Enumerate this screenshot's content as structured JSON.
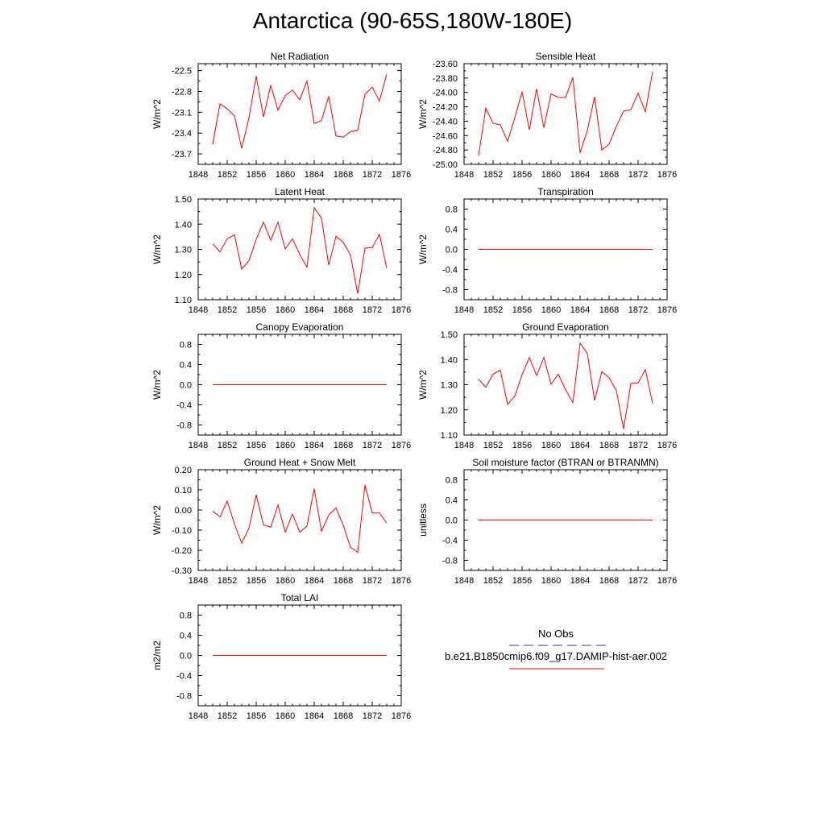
{
  "title": "Antarctica (90-65S,180W-180E)",
  "legend": {
    "obs_label": "No Obs",
    "obs_color": "#3a3aa8",
    "run_label": "b.e21.B1850cmip6.f09_g17.DAMIP-hist-aer.002",
    "run_color": "#ff0000"
  },
  "chart_data": [
    {
      "type": "line",
      "title": "Net Radiation",
      "ylabel": "W/m^2",
      "xlim": [
        1848,
        1876
      ],
      "ylim": [
        -23.85,
        -22.4
      ],
      "xticks": [
        "1848",
        "1852",
        "1856",
        "1860",
        "1864",
        "1868",
        "1872",
        "1876"
      ],
      "yticks": [
        -22.5,
        -22.8,
        -23.1,
        -23.4,
        -23.7
      ],
      "ytick_labels": [
        "-22.5",
        "-22.8",
        "-23.1",
        "-23.4",
        "-23.7"
      ],
      "x": [
        1850,
        1851,
        1852,
        1853,
        1854,
        1855,
        1856,
        1857,
        1858,
        1859,
        1860,
        1861,
        1862,
        1863,
        1864,
        1865,
        1866,
        1867,
        1868,
        1869,
        1870,
        1871,
        1872,
        1873,
        1874
      ],
      "series": [
        {
          "color": "#ff0000",
          "values": [
            -23.56,
            -22.98,
            -23.05,
            -23.15,
            -23.62,
            -23.18,
            -22.58,
            -23.17,
            -22.71,
            -23.07,
            -22.86,
            -22.78,
            -22.92,
            -22.65,
            -23.26,
            -23.22,
            -22.87,
            -23.44,
            -23.46,
            -23.38,
            -23.36,
            -22.84,
            -22.74,
            -22.94,
            -22.55
          ]
        }
      ]
    },
    {
      "type": "line",
      "title": "Sensible Heat",
      "ylabel": "W/m^2",
      "xlim": [
        1848,
        1876
      ],
      "ylim": [
        -25.0,
        -23.6
      ],
      "xticks": [
        "1848",
        "1852",
        "1856",
        "1860",
        "1864",
        "1868",
        "1872",
        "1876"
      ],
      "yticks": [
        -23.6,
        -23.8,
        -24.0,
        -24.2,
        -24.4,
        -24.6,
        -24.8,
        -25.0
      ],
      "ytick_labels": [
        "-23.60",
        "-23.80",
        "-24.00",
        "-24.20",
        "-24.40",
        "-24.60",
        "-24.80",
        "-25.00"
      ],
      "x": [
        1850,
        1851,
        1852,
        1853,
        1854,
        1855,
        1856,
        1857,
        1858,
        1859,
        1860,
        1861,
        1862,
        1863,
        1864,
        1865,
        1866,
        1867,
        1868,
        1869,
        1870,
        1871,
        1872,
        1873,
        1874
      ],
      "series": [
        {
          "color": "#ff0000",
          "values": [
            -24.88,
            -24.22,
            -24.43,
            -24.45,
            -24.68,
            -24.35,
            -23.99,
            -24.52,
            -23.95,
            -24.49,
            -24.02,
            -24.07,
            -24.07,
            -23.79,
            -24.84,
            -24.53,
            -24.06,
            -24.8,
            -24.72,
            -24.47,
            -24.26,
            -24.24,
            -24.01,
            -24.27,
            -23.71
          ]
        }
      ]
    },
    {
      "type": "line",
      "title": "Latent Heat",
      "ylabel": "W/m^2",
      "xlim": [
        1848,
        1876
      ],
      "ylim": [
        1.1,
        1.5
      ],
      "xticks": [
        "1848",
        "1852",
        "1856",
        "1860",
        "1864",
        "1868",
        "1872",
        "1876"
      ],
      "yticks": [
        1.5,
        1.4,
        1.3,
        1.2,
        1.1
      ],
      "ytick_labels": [
        "1.50",
        "1.40",
        "1.30",
        "1.20",
        "1.10"
      ],
      "x": [
        1850,
        1851,
        1852,
        1853,
        1854,
        1855,
        1856,
        1857,
        1858,
        1859,
        1860,
        1861,
        1862,
        1863,
        1864,
        1865,
        1866,
        1867,
        1868,
        1869,
        1870,
        1871,
        1872,
        1873,
        1874
      ],
      "series": [
        {
          "color": "#ff0000",
          "values": [
            1.322,
            1.29,
            1.342,
            1.358,
            1.222,
            1.255,
            1.34,
            1.408,
            1.336,
            1.408,
            1.302,
            1.342,
            1.28,
            1.229,
            1.465,
            1.424,
            1.237,
            1.352,
            1.328,
            1.277,
            1.124,
            1.305,
            1.307,
            1.36,
            1.225
          ]
        }
      ]
    },
    {
      "type": "line",
      "title": "Transpiration",
      "ylabel": "W/m^2",
      "xlim": [
        1848,
        1876
      ],
      "ylim": [
        -1.0,
        1.0
      ],
      "xticks": [
        "1848",
        "1852",
        "1856",
        "1860",
        "1864",
        "1868",
        "1872",
        "1876"
      ],
      "yticks": [
        0.8,
        0.4,
        0.0,
        -0.4,
        -0.8
      ],
      "ytick_labels": [
        "0.8",
        "0.4",
        "0.0",
        "-0.4",
        "-0.8"
      ],
      "x": [
        1850,
        1851,
        1852,
        1853,
        1854,
        1855,
        1856,
        1857,
        1858,
        1859,
        1860,
        1861,
        1862,
        1863,
        1864,
        1865,
        1866,
        1867,
        1868,
        1869,
        1870,
        1871,
        1872,
        1873,
        1874
      ],
      "series": [
        {
          "color": "#ff0000",
          "values": [
            0,
            0,
            0,
            0,
            0,
            0,
            0,
            0,
            0,
            0,
            0,
            0,
            0,
            0,
            0,
            0,
            0,
            0,
            0,
            0,
            0,
            0,
            0,
            0,
            0
          ]
        }
      ]
    },
    {
      "type": "line",
      "title": "Canopy Evaporation",
      "ylabel": "W/m^2",
      "xlim": [
        1848,
        1876
      ],
      "ylim": [
        -1.0,
        1.0
      ],
      "xticks": [
        "1848",
        "1852",
        "1856",
        "1860",
        "1864",
        "1868",
        "1872",
        "1876"
      ],
      "yticks": [
        0.8,
        0.4,
        0.0,
        -0.4,
        -0.8
      ],
      "ytick_labels": [
        "0.8",
        "0.4",
        "0.0",
        "-0.4",
        "-0.8"
      ],
      "x": [
        1850,
        1851,
        1852,
        1853,
        1854,
        1855,
        1856,
        1857,
        1858,
        1859,
        1860,
        1861,
        1862,
        1863,
        1864,
        1865,
        1866,
        1867,
        1868,
        1869,
        1870,
        1871,
        1872,
        1873,
        1874
      ],
      "series": [
        {
          "color": "#ff0000",
          "values": [
            0,
            0,
            0,
            0,
            0,
            0,
            0,
            0,
            0,
            0,
            0,
            0,
            0,
            0,
            0,
            0,
            0,
            0,
            0,
            0,
            0,
            0,
            0,
            0,
            0
          ]
        }
      ]
    },
    {
      "type": "line",
      "title": "Ground Evaporation",
      "ylabel": "W/m^2",
      "xlim": [
        1848,
        1876
      ],
      "ylim": [
        1.1,
        1.5
      ],
      "xticks": [
        "1848",
        "1852",
        "1856",
        "1860",
        "1864",
        "1868",
        "1872",
        "1876"
      ],
      "yticks": [
        1.5,
        1.4,
        1.3,
        1.2,
        1.1
      ],
      "ytick_labels": [
        "1.50",
        "1.40",
        "1.30",
        "1.20",
        "1.10"
      ],
      "x": [
        1850,
        1851,
        1852,
        1853,
        1854,
        1855,
        1856,
        1857,
        1858,
        1859,
        1860,
        1861,
        1862,
        1863,
        1864,
        1865,
        1866,
        1867,
        1868,
        1869,
        1870,
        1871,
        1872,
        1873,
        1874
      ],
      "series": [
        {
          "color": "#ff0000",
          "values": [
            1.322,
            1.29,
            1.342,
            1.358,
            1.222,
            1.255,
            1.34,
            1.408,
            1.336,
            1.408,
            1.302,
            1.342,
            1.28,
            1.229,
            1.465,
            1.424,
            1.237,
            1.352,
            1.328,
            1.277,
            1.124,
            1.305,
            1.307,
            1.36,
            1.225
          ]
        }
      ]
    },
    {
      "type": "line",
      "title": "Ground Heat + Snow Melt",
      "ylabel": "W/m^2",
      "xlim": [
        1848,
        1876
      ],
      "ylim": [
        -0.3,
        0.2
      ],
      "xticks": [
        "1848",
        "1852",
        "1856",
        "1860",
        "1864",
        "1868",
        "1872",
        "1876"
      ],
      "yticks": [
        0.2,
        0.1,
        0.0,
        -0.1,
        -0.2,
        -0.3
      ],
      "ytick_labels": [
        "0.20",
        "0.10",
        "0.00",
        "-0.10",
        "-0.20",
        "-0.30"
      ],
      "x": [
        1850,
        1851,
        1852,
        1853,
        1854,
        1855,
        1856,
        1857,
        1858,
        1859,
        1860,
        1861,
        1862,
        1863,
        1864,
        1865,
        1866,
        1867,
        1868,
        1869,
        1870,
        1871,
        1872,
        1873,
        1874
      ],
      "series": [
        {
          "color": "#ff0000",
          "values": [
            -0.005,
            -0.035,
            0.045,
            -0.07,
            -0.165,
            -0.09,
            0.075,
            -0.075,
            -0.085,
            0.025,
            -0.11,
            -0.02,
            -0.11,
            -0.08,
            0.105,
            -0.105,
            -0.025,
            0.01,
            -0.075,
            -0.185,
            -0.21,
            0.125,
            -0.015,
            -0.015,
            -0.065
          ]
        }
      ]
    },
    {
      "type": "line",
      "title": "Soil moisture factor (BTRAN or BTRANMN)",
      "ylabel": "unitless",
      "xlim": [
        1848,
        1876
      ],
      "ylim": [
        -1.0,
        1.0
      ],
      "xticks": [
        "1848",
        "1852",
        "1856",
        "1860",
        "1864",
        "1868",
        "1872",
        "1876"
      ],
      "yticks": [
        0.8,
        0.4,
        0.0,
        -0.4,
        -0.8
      ],
      "ytick_labels": [
        "0.8",
        "0.4",
        "0.0",
        "-0.4",
        "-0.8"
      ],
      "x": [
        1850,
        1851,
        1852,
        1853,
        1854,
        1855,
        1856,
        1857,
        1858,
        1859,
        1860,
        1861,
        1862,
        1863,
        1864,
        1865,
        1866,
        1867,
        1868,
        1869,
        1870,
        1871,
        1872,
        1873,
        1874
      ],
      "series": [
        {
          "color": "#ff0000",
          "values": [
            0,
            0,
            0,
            0,
            0,
            0,
            0,
            0,
            0,
            0,
            0,
            0,
            0,
            0,
            0,
            0,
            0,
            0,
            0,
            0,
            0,
            0,
            0,
            0,
            0
          ]
        }
      ]
    },
    {
      "type": "line",
      "title": "Total LAI",
      "ylabel": "m2/m2",
      "xlim": [
        1848,
        1876
      ],
      "ylim": [
        -1.0,
        1.0
      ],
      "xticks": [
        "1848",
        "1852",
        "1856",
        "1860",
        "1864",
        "1868",
        "1872",
        "1876"
      ],
      "yticks": [
        0.8,
        0.4,
        0.0,
        -0.4,
        -0.8
      ],
      "ytick_labels": [
        "0.8",
        "0.4",
        "0.0",
        "-0.4",
        "-0.8"
      ],
      "x": [
        1850,
        1851,
        1852,
        1853,
        1854,
        1855,
        1856,
        1857,
        1858,
        1859,
        1860,
        1861,
        1862,
        1863,
        1864,
        1865,
        1866,
        1867,
        1868,
        1869,
        1870,
        1871,
        1872,
        1873,
        1874
      ],
      "series": [
        {
          "color": "#ff0000",
          "values": [
            0,
            0,
            0,
            0,
            0,
            0,
            0,
            0,
            0,
            0,
            0,
            0,
            0,
            0,
            0,
            0,
            0,
            0,
            0,
            0,
            0,
            0,
            0,
            0,
            0
          ]
        }
      ]
    }
  ]
}
